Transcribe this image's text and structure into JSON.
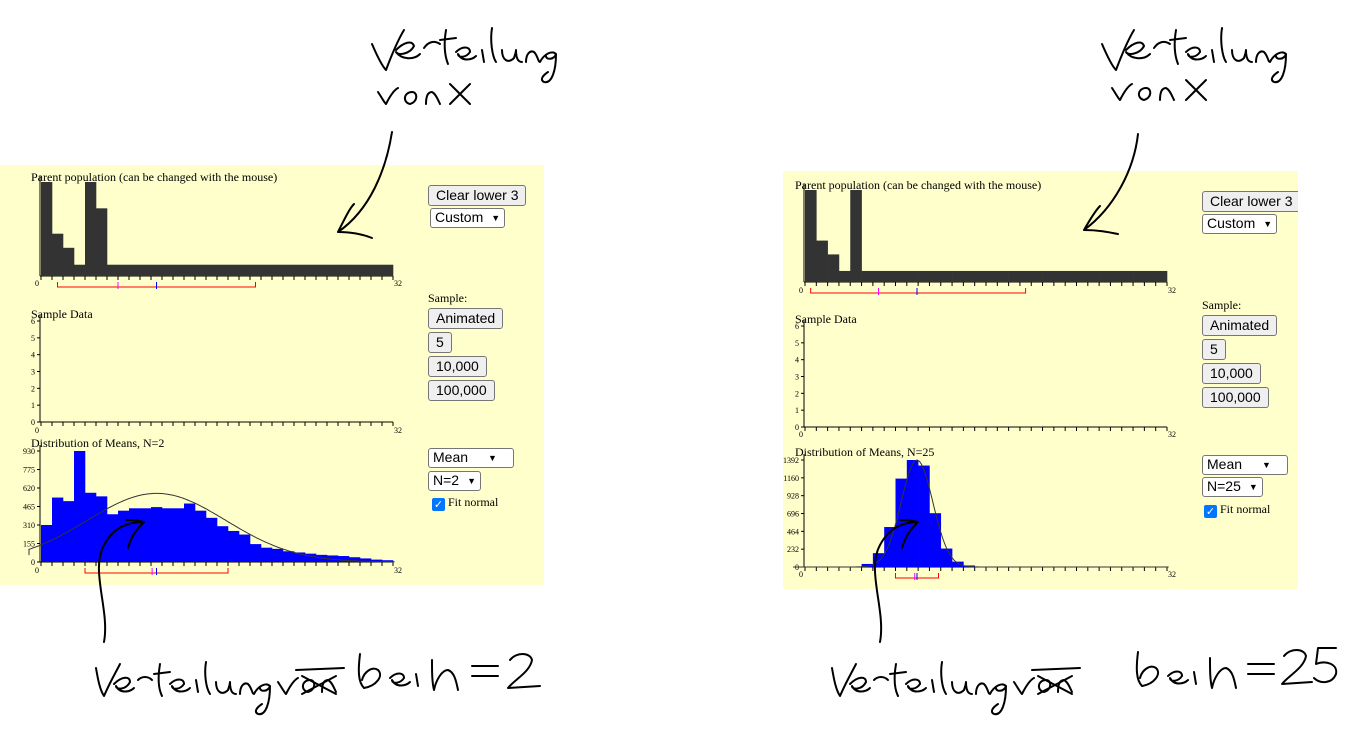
{
  "panels": [
    {
      "top_label": "Parent population (can be changed with the mouse)",
      "sample_label": "Sample Data",
      "means_label": "Distribution of Means, N=2",
      "axis_min": "0",
      "axis_max": "32",
      "sample_yticks": [
        "0",
        "1",
        "2",
        "3",
        "4",
        "5",
        "6"
      ],
      "means_yticks": [
        "0",
        "155",
        "310",
        "465",
        "620",
        "775",
        "930"
      ],
      "clear_button": "Clear lower 3",
      "custom_select": "Custom",
      "sample_heading": "Sample:",
      "animated_button": "Animated",
      "five_button": "5",
      "tenk_button": "10,000",
      "hundredk_button": "100,000",
      "stat_select": "Mean",
      "n_select": "N=2",
      "fit_normal_label": "Fit normal",
      "fit_normal_checked": true
    },
    {
      "top_label": "Parent population (can be changed with the mouse)",
      "sample_label": "Sample Data",
      "means_label": "Distribution of Means, N=25",
      "axis_min": "0",
      "axis_max": "32",
      "sample_yticks": [
        "0",
        "1",
        "2",
        "3",
        "4",
        "5",
        "6"
      ],
      "means_yticks": [
        "0",
        "232",
        "464",
        "696",
        "928",
        "1160",
        "1392"
      ],
      "clear_button": "Clear lower 3",
      "custom_select": "Custom",
      "sample_heading": "Sample:",
      "animated_button": "Animated",
      "five_button": "5",
      "tenk_button": "10,000",
      "hundredk_button": "100,000",
      "stat_select": "Mean",
      "n_select": "N=25",
      "fit_normal_label": "Fit normal",
      "fit_normal_checked": true
    }
  ],
  "chart_data": [
    {
      "type": "bar",
      "title": "Parent population (can be changed with the mouse)",
      "x": [
        0,
        1,
        2,
        3,
        4,
        5,
        6,
        7,
        8,
        9,
        10,
        11,
        12,
        13,
        14,
        15,
        16,
        17,
        18,
        19,
        20,
        21,
        22,
        23,
        24,
        25,
        26,
        27,
        28,
        29,
        30,
        31
      ],
      "values": [
        1.0,
        0.45,
        0.3,
        0.12,
        1.0,
        0.72,
        0.12,
        0.12,
        0.12,
        0.12,
        0.12,
        0.12,
        0.12,
        0.12,
        0.12,
        0.12,
        0.12,
        0.12,
        0.12,
        0.12,
        0.12,
        0.12,
        0.12,
        0.12,
        0.12,
        0.12,
        0.12,
        0.12,
        0.12,
        0.12,
        0.12,
        0.12
      ],
      "xlim": [
        0,
        32
      ],
      "mean": 10.5,
      "median": 7.0,
      "one_sd_interval": [
        1.5,
        19.5
      ],
      "colors": {
        "bars": "#333333",
        "mean": "#0000ff",
        "median": "#ff00ff",
        "sd": "#ff0000"
      }
    },
    {
      "type": "bar",
      "title": "Sample Data",
      "values": [],
      "xlim": [
        0,
        32
      ],
      "ylim": [
        0,
        6
      ]
    },
    {
      "type": "bar",
      "title": "Distribution of Means, N=2",
      "x": [
        0,
        1,
        2,
        3,
        4,
        5,
        6,
        7,
        8,
        9,
        10,
        11,
        12,
        13,
        14,
        15,
        16,
        17,
        18,
        19,
        20,
        21,
        22,
        23,
        24,
        25,
        26,
        27,
        28,
        29,
        30,
        31
      ],
      "values": [
        310,
        540,
        510,
        930,
        580,
        550,
        400,
        430,
        450,
        450,
        460,
        450,
        450,
        490,
        430,
        370,
        300,
        260,
        230,
        150,
        120,
        110,
        90,
        80,
        70,
        60,
        55,
        50,
        40,
        30,
        20,
        15
      ],
      "ylim": [
        0,
        930
      ],
      "xlim": [
        0,
        32
      ],
      "mean": 10.5,
      "median": 10.1,
      "one_sd_interval": [
        4.0,
        17.0
      ],
      "normal_fit": {
        "mean": 10.5,
        "sd": 6.3,
        "peak": 575
      },
      "colors": {
        "bars": "#0000ff",
        "fit": "#333333",
        "mean": "#0000ff",
        "median": "#ff00ff",
        "sd": "#ff0000"
      }
    },
    {
      "type": "bar",
      "title": "Parent population (can be changed with the mouse)",
      "x": [
        0,
        1,
        2,
        3,
        4,
        5,
        6,
        7,
        8,
        9,
        10,
        11,
        12,
        13,
        14,
        15,
        16,
        17,
        18,
        19,
        20,
        21,
        22,
        23,
        24,
        25,
        26,
        27,
        28,
        29,
        30,
        31
      ],
      "values": [
        1.0,
        0.45,
        0.3,
        0.12,
        1.0,
        0.12,
        0.12,
        0.12,
        0.12,
        0.12,
        0.12,
        0.12,
        0.12,
        0.12,
        0.12,
        0.12,
        0.12,
        0.12,
        0.12,
        0.12,
        0.12,
        0.12,
        0.12,
        0.12,
        0.12,
        0.12,
        0.12,
        0.12,
        0.12,
        0.12,
        0.12,
        0.12
      ],
      "xlim": [
        0,
        32
      ],
      "mean": 9.9,
      "median": 6.5,
      "one_sd_interval": [
        0.5,
        19.5
      ],
      "colors": {
        "bars": "#333333",
        "mean": "#0000ff",
        "median": "#ff00ff",
        "sd": "#ff0000"
      }
    },
    {
      "type": "bar",
      "title": "Sample Data",
      "values": [],
      "xlim": [
        0,
        32
      ],
      "ylim": [
        0,
        6
      ]
    },
    {
      "type": "bar",
      "title": "Distribution of Means, N=25",
      "x": [
        0,
        1,
        2,
        3,
        4,
        5,
        6,
        7,
        8,
        9,
        10,
        11,
        12,
        13,
        14,
        15,
        16,
        17,
        18,
        19,
        20,
        21,
        22,
        23,
        24,
        25,
        26,
        27,
        28,
        29,
        30,
        31
      ],
      "values": [
        0,
        0,
        0,
        0,
        0,
        40,
        180,
        520,
        1150,
        1392,
        1320,
        700,
        240,
        70,
        20,
        5,
        0,
        0,
        0,
        0,
        0,
        0,
        0,
        0,
        0,
        0,
        0,
        0,
        0,
        0,
        0,
        0
      ],
      "ylim": [
        0,
        1392
      ],
      "xlim": [
        0,
        32
      ],
      "mean": 9.9,
      "median": 9.7,
      "one_sd_interval": [
        8.0,
        11.8
      ],
      "normal_fit": {
        "mean": 9.9,
        "sd": 1.4,
        "peak": 1392
      },
      "colors": {
        "bars": "#0000ff",
        "fit": "#333333",
        "mean": "#0000ff",
        "median": "#ff00ff",
        "sd": "#ff0000"
      }
    }
  ]
}
